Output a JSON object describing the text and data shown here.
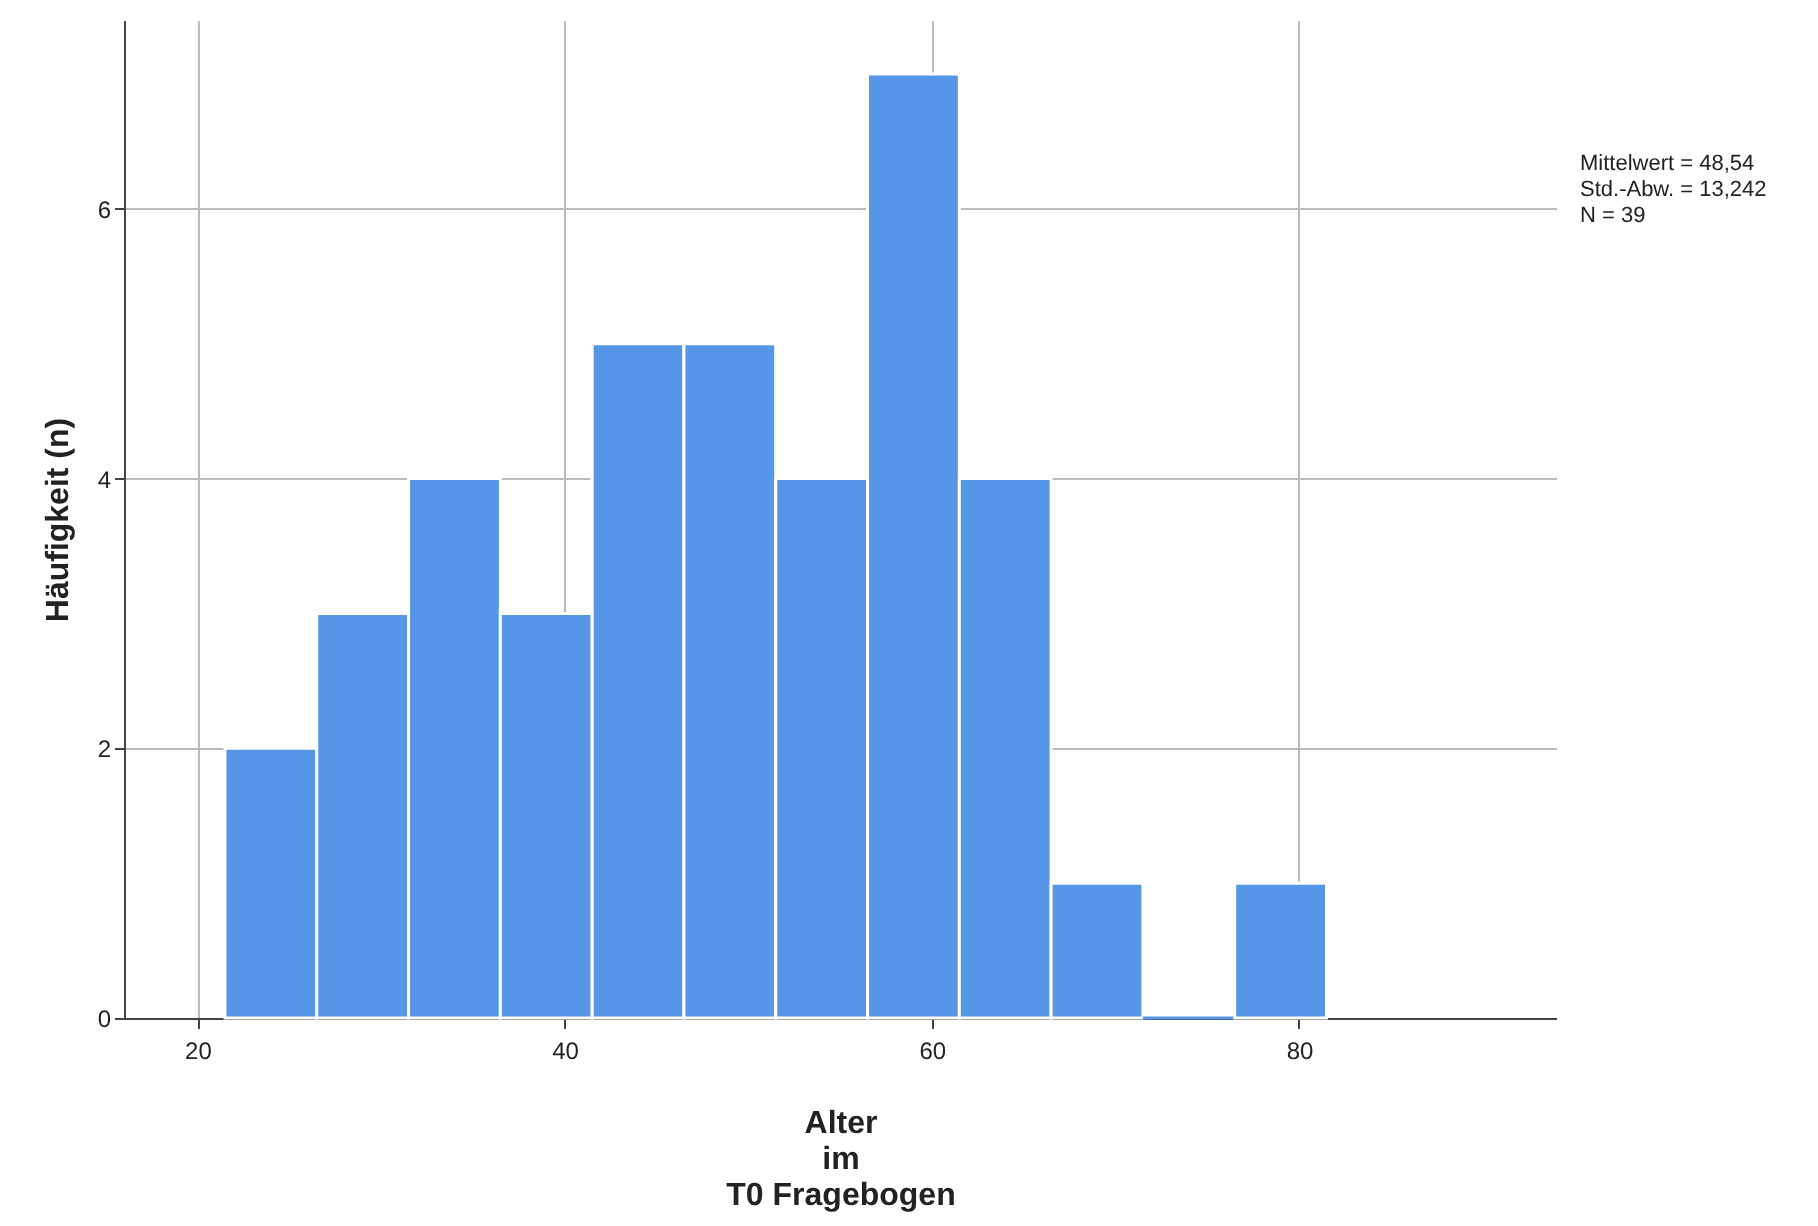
{
  "chart_data": {
    "type": "histogram",
    "xlabel": "Alter\nim\nT0 Fragebogen",
    "ylabel": "Häufigkeit (n)",
    "bins": [
      21.5,
      26.5,
      31.5,
      36.5,
      41.5,
      46.5,
      51.5,
      56.5,
      61.5,
      66.5,
      71.5,
      76.5,
      81.5
    ],
    "values": [
      2,
      3,
      4,
      3,
      5,
      5,
      4,
      7,
      4,
      1,
      0,
      1
    ],
    "color": "#5596e6",
    "xlim": [
      16,
      94
    ],
    "xticks": [
      20,
      40,
      60,
      80
    ],
    "ylim": [
      0,
      7.4
    ],
    "yticks": [
      0,
      2,
      4,
      6
    ],
    "grid": true,
    "annotations": [
      "Mittelwert = 48,54",
      "Std.-Abw. = 13,242",
      "N = 39"
    ]
  }
}
